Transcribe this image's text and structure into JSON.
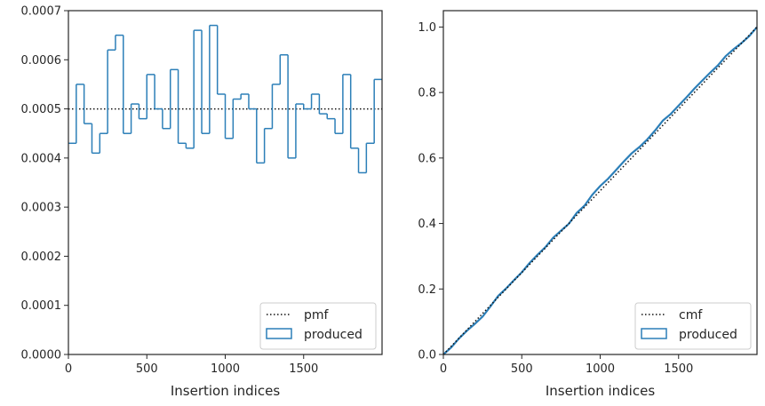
{
  "chart_data": [
    {
      "type": "step",
      "xlabel": "Insertion indices",
      "ylabel": "",
      "xlim": [
        0,
        2000
      ],
      "ylim": [
        0,
        0.0007
      ],
      "xticks": [
        "0",
        "500",
        "1000",
        "1500"
      ],
      "yticks": [
        "0.0000",
        "0.0001",
        "0.0002",
        "0.0003",
        "0.0004",
        "0.0005",
        "0.0006",
        "0.0007"
      ],
      "bin_width": 50,
      "series": [
        {
          "name": "pmf",
          "style": "dotted",
          "color": "#111111",
          "constant": 0.0005
        },
        {
          "name": "produced",
          "style": "step",
          "color": "#2c7fb8",
          "values": [
            0.00043,
            0.00055,
            0.00047,
            0.00041,
            0.00045,
            0.00062,
            0.00065,
            0.00045,
            0.00051,
            0.00048,
            0.00057,
            0.0005,
            0.00046,
            0.00058,
            0.00043,
            0.00042,
            0.00066,
            0.00045,
            0.00067,
            0.00053,
            0.00044,
            0.00052,
            0.00053,
            0.0005,
            0.00039,
            0.00046,
            0.00055,
            0.00061,
            0.0004,
            0.00051,
            0.0005,
            0.00053,
            0.00049,
            0.00048,
            0.00045,
            0.00057,
            0.00042,
            0.00037,
            0.00043,
            0.00056
          ]
        }
      ],
      "legend": {
        "position": "bottom-right",
        "items": [
          "pmf",
          "produced"
        ]
      },
      "grid": false
    },
    {
      "type": "line",
      "xlabel": "Insertion indices",
      "ylabel": "",
      "xlim": [
        0,
        2000
      ],
      "ylim": [
        0,
        1.05
      ],
      "xticks": [
        "0",
        "500",
        "1000",
        "1500"
      ],
      "yticks": [
        "0.0",
        "0.2",
        "0.4",
        "0.6",
        "0.8",
        "1.0"
      ],
      "series": [
        {
          "name": "cmf",
          "style": "dotted",
          "color": "#111111",
          "x": [
            0,
            2000
          ],
          "y": [
            0,
            1
          ]
        },
        {
          "name": "produced",
          "style": "solid",
          "color": "#2c7fb8",
          "x": [
            0,
            50,
            100,
            150,
            200,
            250,
            300,
            350,
            400,
            450,
            500,
            550,
            600,
            650,
            700,
            750,
            800,
            850,
            900,
            950,
            1000,
            1050,
            1100,
            1150,
            1200,
            1250,
            1300,
            1350,
            1400,
            1450,
            1500,
            1550,
            1600,
            1650,
            1700,
            1750,
            1800,
            1850,
            1900,
            1950,
            2000
          ],
          "y": [
            0,
            0.0215,
            0.049,
            0.0725,
            0.093,
            0.1155,
            0.1465,
            0.179,
            0.2015,
            0.227,
            0.251,
            0.2795,
            0.3045,
            0.3275,
            0.3565,
            0.378,
            0.399,
            0.432,
            0.4545,
            0.488,
            0.5145,
            0.5365,
            0.5625,
            0.589,
            0.614,
            0.6335,
            0.6565,
            0.684,
            0.7145,
            0.7345,
            0.76,
            0.785,
            0.8115,
            0.836,
            0.86,
            0.8825,
            0.911,
            0.932,
            0.9505,
            0.972,
            1.0
          ]
        }
      ],
      "legend": {
        "position": "bottom-right",
        "items": [
          "cmf",
          "produced"
        ]
      },
      "grid": false
    }
  ]
}
